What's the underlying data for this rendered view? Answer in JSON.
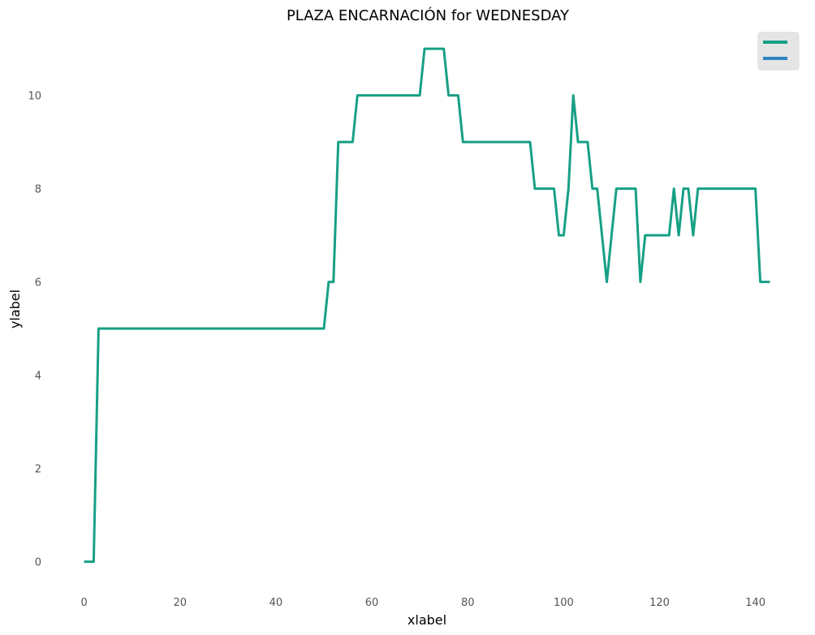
{
  "chart_data": {
    "type": "line",
    "title": "PLAZA ENCARNACIÓN for WEDNESDAY",
    "xlabel": "xlabel",
    "ylabel": "ylabel",
    "xlim": [
      -4,
      147
    ],
    "ylim": [
      -0.65,
      11.35
    ],
    "xticks": [
      0,
      20,
      40,
      60,
      80,
      100,
      120,
      140
    ],
    "yticks": [
      0,
      2,
      4,
      6,
      8,
      10
    ],
    "grid": false,
    "legend": "top-right",
    "series": [
      {
        "color": "#16a085",
        "points": [
          [
            0,
            0
          ],
          [
            2,
            0
          ],
          [
            3,
            5
          ],
          [
            50,
            5
          ],
          [
            51,
            6
          ],
          [
            52,
            6
          ],
          [
            53,
            9
          ],
          [
            56,
            9
          ],
          [
            57,
            10
          ],
          [
            70,
            10
          ],
          [
            71,
            11
          ],
          [
            75,
            11
          ],
          [
            76,
            10
          ],
          [
            78,
            10
          ],
          [
            79,
            9
          ],
          [
            93,
            9
          ],
          [
            94,
            8
          ],
          [
            98,
            8
          ],
          [
            99,
            7
          ],
          [
            100,
            7
          ],
          [
            101,
            8
          ],
          [
            102,
            10
          ],
          [
            103,
            9
          ],
          [
            105,
            9
          ],
          [
            106,
            8
          ],
          [
            107,
            8
          ],
          [
            109,
            6
          ],
          [
            111,
            8
          ],
          [
            115,
            8
          ],
          [
            116,
            6
          ],
          [
            117,
            7
          ],
          [
            122,
            7
          ],
          [
            123,
            8
          ],
          [
            124,
            7
          ],
          [
            125,
            8
          ],
          [
            126,
            8
          ],
          [
            127,
            7
          ],
          [
            128,
            8
          ],
          [
            140,
            8
          ],
          [
            141,
            6
          ],
          [
            143,
            6
          ]
        ]
      },
      {
        "color": "#2e86c1",
        "points": []
      }
    ]
  }
}
